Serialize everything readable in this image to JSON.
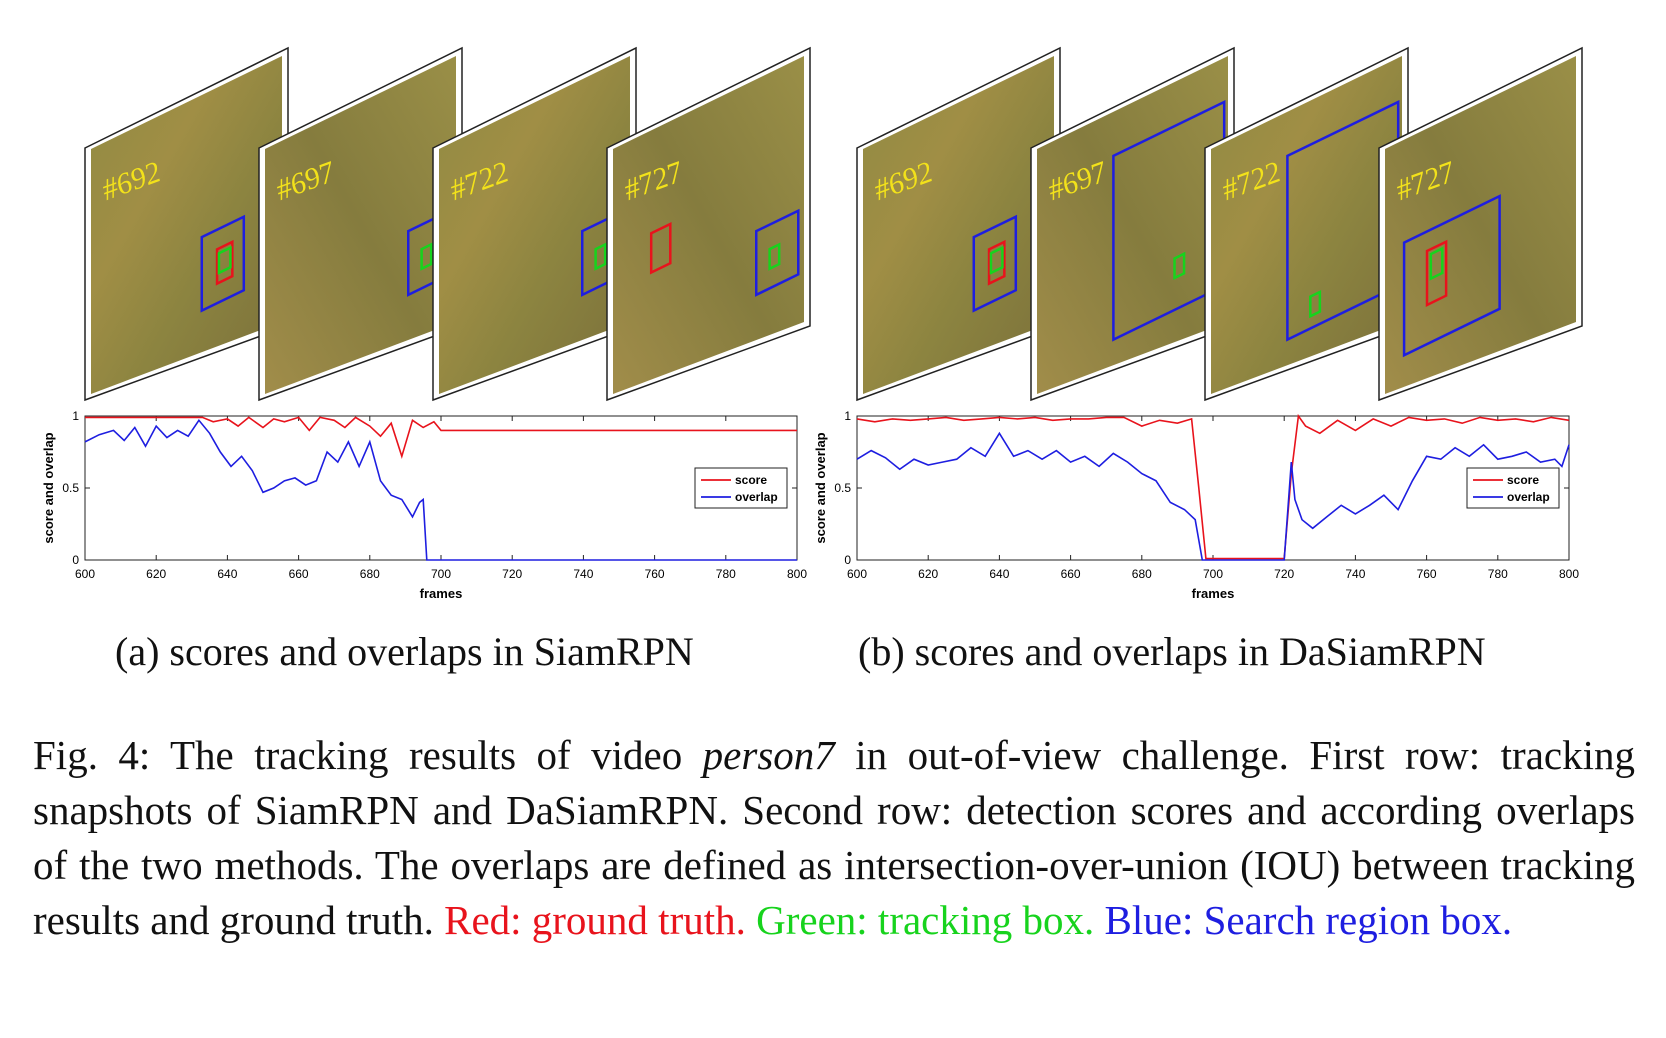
{
  "panels": [
    {
      "id": "a",
      "subcaption": "(a) scores and overlaps in SiamRPN",
      "frames": [
        {
          "label": "#692",
          "tracker_box": "on-target",
          "gt_box": true,
          "search_region": "small"
        },
        {
          "label": "#697",
          "tracker_box": "drifted",
          "gt_box": false,
          "search_region": "small"
        },
        {
          "label": "#722",
          "tracker_box": "drifted",
          "gt_box": false,
          "search_region": "small"
        },
        {
          "label": "#727",
          "tracker_box": "drifted",
          "gt_box": true,
          "search_region": "small"
        }
      ]
    },
    {
      "id": "b",
      "subcaption": "(b) scores and overlaps in DaSiamRPN",
      "frames": [
        {
          "label": "#692",
          "tracker_box": "on-target",
          "gt_box": true,
          "search_region": "small"
        },
        {
          "label": "#697",
          "tracker_box": "drifted",
          "gt_box": false,
          "search_region": "large"
        },
        {
          "label": "#722",
          "tracker_box": "re-detect",
          "gt_box": false,
          "search_region": "large"
        },
        {
          "label": "#727",
          "tracker_box": "on-target",
          "gt_box": true,
          "search_region": "small"
        }
      ]
    }
  ],
  "chart_data": [
    {
      "type": "line",
      "panel": "a",
      "xlabel": "frames",
      "ylabel": "score and overlap",
      "xlim": [
        600,
        800
      ],
      "ylim": [
        0,
        1
      ],
      "xticks": [
        "600",
        "620",
        "640",
        "660",
        "680",
        "700",
        "720",
        "740",
        "760",
        "780",
        "800"
      ],
      "yticks": [
        "0",
        "0.5",
        "1"
      ],
      "legend": "right",
      "grid": false,
      "series": [
        {
          "name": "score",
          "color": "#e8131c",
          "x": [
            600,
            605,
            610,
            615,
            620,
            625,
            630,
            633,
            636,
            640,
            643,
            646,
            650,
            653,
            656,
            660,
            663,
            666,
            670,
            673,
            676,
            680,
            683,
            686,
            689,
            692,
            695,
            698,
            700,
            720,
            740,
            760,
            780,
            800
          ],
          "y": [
            0.99,
            0.99,
            0.99,
            0.99,
            0.99,
            0.99,
            0.99,
            0.99,
            0.96,
            0.98,
            0.93,
            0.99,
            0.92,
            0.98,
            0.96,
            0.99,
            0.9,
            0.99,
            0.97,
            0.92,
            0.99,
            0.93,
            0.86,
            0.95,
            0.72,
            0.97,
            0.92,
            0.96,
            0.9,
            0.9,
            0.9,
            0.9,
            0.9,
            0.9
          ]
        },
        {
          "name": "overlap",
          "color": "#1e1ee0",
          "x": [
            600,
            604,
            608,
            611,
            614,
            617,
            620,
            623,
            626,
            629,
            632,
            635,
            638,
            641,
            644,
            647,
            650,
            653,
            656,
            659,
            662,
            665,
            668,
            671,
            674,
            677,
            680,
            683,
            686,
            689,
            692,
            694,
            695,
            696,
            700,
            720,
            740,
            760,
            780,
            800
          ],
          "y": [
            0.82,
            0.87,
            0.9,
            0.83,
            0.92,
            0.79,
            0.93,
            0.85,
            0.9,
            0.86,
            0.97,
            0.88,
            0.75,
            0.65,
            0.72,
            0.62,
            0.47,
            0.5,
            0.55,
            0.57,
            0.52,
            0.55,
            0.75,
            0.68,
            0.82,
            0.65,
            0.82,
            0.55,
            0.45,
            0.42,
            0.3,
            0.4,
            0.42,
            0.0,
            0.0,
            0.0,
            0.0,
            0.0,
            0.0,
            0.0
          ]
        }
      ]
    },
    {
      "type": "line",
      "panel": "b",
      "xlabel": "frames",
      "ylabel": "score and overlap",
      "xlim": [
        600,
        800
      ],
      "ylim": [
        0,
        1
      ],
      "xticks": [
        "600",
        "620",
        "640",
        "660",
        "680",
        "700",
        "720",
        "740",
        "760",
        "780",
        "800"
      ],
      "yticks": [
        "0",
        "0.5",
        "1"
      ],
      "legend": "right",
      "grid": false,
      "series": [
        {
          "name": "score",
          "color": "#e8131c",
          "x": [
            600,
            605,
            610,
            615,
            620,
            625,
            630,
            635,
            640,
            645,
            650,
            655,
            660,
            665,
            670,
            675,
            680,
            685,
            690,
            694,
            696,
            698,
            700,
            710,
            720,
            722,
            724,
            726,
            730,
            735,
            740,
            745,
            750,
            755,
            760,
            765,
            770,
            775,
            780,
            785,
            790,
            795,
            800
          ],
          "y": [
            0.98,
            0.96,
            0.98,
            0.97,
            0.98,
            0.99,
            0.97,
            0.98,
            0.99,
            0.98,
            0.99,
            0.97,
            0.98,
            0.98,
            0.99,
            0.99,
            0.93,
            0.97,
            0.95,
            0.98,
            0.5,
            0.01,
            0.01,
            0.01,
            0.01,
            0.6,
            1.0,
            0.93,
            0.88,
            0.97,
            0.9,
            0.98,
            0.93,
            0.99,
            0.97,
            0.98,
            0.95,
            0.99,
            0.97,
            0.98,
            0.96,
            0.99,
            0.97
          ]
        },
        {
          "name": "overlap",
          "color": "#1e1ee0",
          "x": [
            600,
            604,
            608,
            612,
            616,
            620,
            624,
            628,
            632,
            636,
            640,
            644,
            648,
            652,
            656,
            660,
            664,
            668,
            672,
            676,
            680,
            684,
            688,
            692,
            695,
            697,
            700,
            710,
            720,
            722,
            723,
            725,
            728,
            732,
            736,
            740,
            744,
            748,
            752,
            756,
            760,
            764,
            768,
            772,
            776,
            780,
            784,
            788,
            792,
            796,
            798,
            800
          ],
          "y": [
            0.7,
            0.76,
            0.71,
            0.63,
            0.7,
            0.66,
            0.68,
            0.7,
            0.78,
            0.72,
            0.88,
            0.72,
            0.76,
            0.7,
            0.76,
            0.68,
            0.72,
            0.65,
            0.74,
            0.68,
            0.6,
            0.55,
            0.4,
            0.35,
            0.28,
            0.0,
            0.0,
            0.0,
            0.0,
            0.68,
            0.42,
            0.28,
            0.22,
            0.3,
            0.38,
            0.32,
            0.38,
            0.45,
            0.35,
            0.55,
            0.72,
            0.7,
            0.78,
            0.72,
            0.8,
            0.7,
            0.72,
            0.75,
            0.68,
            0.7,
            0.65,
            0.8
          ]
        }
      ]
    }
  ],
  "caption": {
    "fig_label": "Fig. 4:",
    "text_1": " The tracking results of video ",
    "video_name": "person7",
    "text_2": " in out-of-view challenge. First row: tracking snapshots of SiamRPN and DaSiamRPN. Second row: detection scores and according overlaps of the two methods. The overlaps are defined as intersection-over-union (IOU) between tracking results and ground truth. ",
    "red_text": "Red: ground truth.",
    "green_text": " Green: tracking box.",
    "blue_text": " Blue: Search region box."
  }
}
